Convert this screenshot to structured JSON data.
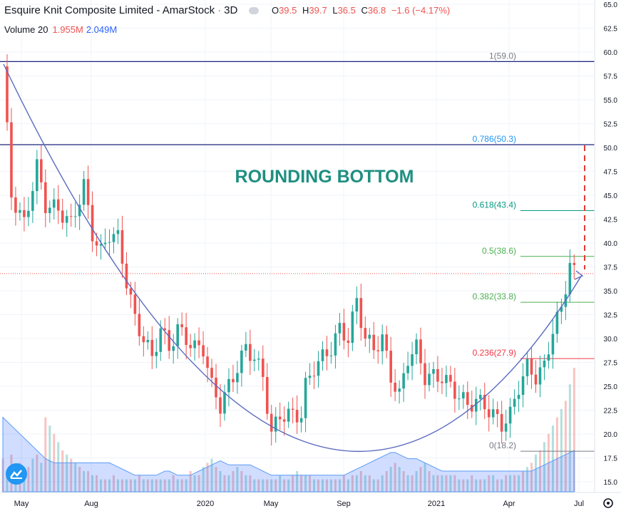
{
  "header": {
    "title": "Esquire Knit Composite Limited - AmarStock",
    "interval": "3D",
    "ohlc": [
      {
        "k": "O",
        "v": "39.5"
      },
      {
        "k": "H",
        "v": "39.7"
      },
      {
        "k": "L",
        "v": "36.5"
      },
      {
        "k": "C",
        "v": "36.8"
      }
    ],
    "change": "−1.6 (−4.17%)"
  },
  "volume_legend": {
    "label": "Volume 20",
    "v1": "1.955M",
    "v2": "2.049M"
  },
  "colors": {
    "up": "#26a69a",
    "down": "#ef5350",
    "accent": "#2962ff",
    "annotation": "#1e8f80",
    "fib0236": "#f23645",
    "fib0382": "#4caf50",
    "fib0618": "#089981",
    "fib0786": "#2196f3"
  },
  "chart_data": {
    "type": "candlestick",
    "title": "ROUNDING BOTTOM",
    "price_axis": {
      "ticks": [
        "65.0",
        "62.5",
        "60.0",
        "57.5",
        "55.0",
        "52.5",
        "50.0",
        "47.5",
        "45.0",
        "42.5",
        "40.0",
        "37.5",
        "35.0",
        "32.5",
        "30.0",
        "27.5",
        "25.0",
        "22.5",
        "20.0",
        "17.5",
        "15.0"
      ]
    },
    "time_axis": {
      "ticks": [
        "May",
        "Aug",
        "2020",
        "May",
        "Sep",
        "2021",
        "Apr",
        "Jul"
      ]
    },
    "last_price_label": "36.8",
    "fib_levels": [
      {
        "label": "1(59.0)",
        "price": 59.0
      },
      {
        "label": "0.786(50.3)",
        "price": 50.3
      },
      {
        "label": "0.618(43.4)",
        "price": 43.4
      },
      {
        "label": "0.5(38.6)",
        "price": 38.6
      },
      {
        "label": "0.382(33.8)",
        "price": 33.8
      },
      {
        "label": "0.236(27.9)",
        "price": 27.9
      },
      {
        "label": "0(18.2)",
        "price": 18.2
      }
    ],
    "horizontal_lines": [
      {
        "price_label": "59.0",
        "price": 59.0
      },
      {
        "price_label": "50.3",
        "price": 50.3
      }
    ],
    "price_path": [
      [
        0,
        58.5
      ],
      [
        2,
        45
      ],
      [
        5,
        42
      ],
      [
        8,
        48
      ],
      [
        10,
        44
      ],
      [
        13,
        43.5
      ],
      [
        16,
        42
      ],
      [
        19,
        46
      ],
      [
        21,
        41
      ],
      [
        23,
        39
      ],
      [
        25,
        41
      ],
      [
        27,
        40.5
      ],
      [
        29,
        36
      ],
      [
        31,
        32
      ],
      [
        33,
        30
      ],
      [
        35,
        28
      ],
      [
        37,
        31
      ],
      [
        39,
        29
      ],
      [
        41,
        31
      ],
      [
        43,
        30
      ],
      [
        45,
        29
      ],
      [
        47,
        29
      ],
      [
        49,
        25
      ],
      [
        51,
        23
      ],
      [
        53,
        25
      ],
      [
        55,
        27
      ],
      [
        57,
        29
      ],
      [
        59,
        28
      ],
      [
        61,
        26
      ],
      [
        63,
        20
      ],
      [
        65,
        22
      ],
      [
        68,
        22
      ],
      [
        70,
        22
      ],
      [
        71,
        25
      ],
      [
        73,
        27
      ],
      [
        75,
        28
      ],
      [
        77,
        29
      ],
      [
        79,
        31
      ],
      [
        81,
        30
      ],
      [
        83,
        34
      ],
      [
        85,
        30
      ],
      [
        87,
        29
      ],
      [
        89,
        30
      ],
      [
        91,
        26
      ],
      [
        93,
        24
      ],
      [
        95,
        28
      ],
      [
        97,
        29
      ],
      [
        99,
        26
      ],
      [
        101,
        26
      ],
      [
        103,
        26
      ],
      [
        105,
        25
      ],
      [
        107,
        24
      ],
      [
        109,
        23
      ],
      [
        111,
        23.5
      ],
      [
        113,
        23
      ],
      [
        115,
        22
      ],
      [
        117,
        21
      ],
      [
        119,
        22
      ],
      [
        121,
        25
      ],
      [
        123,
        27
      ],
      [
        125,
        26
      ],
      [
        127,
        27
      ],
      [
        129,
        31
      ],
      [
        131,
        33
      ],
      [
        133,
        38
      ],
      [
        134,
        36.8
      ]
    ],
    "volume": [
      8,
      5,
      9,
      6,
      7,
      5,
      6,
      8,
      9,
      7,
      18,
      16,
      14,
      12,
      10,
      9,
      8,
      7,
      6,
      5,
      5,
      4,
      4,
      3,
      3,
      3,
      4,
      3,
      3,
      3,
      3,
      3,
      4,
      3,
      3,
      3,
      3,
      3,
      3,
      3,
      4,
      3,
      3,
      3,
      5,
      4,
      4,
      6,
      7,
      8,
      6,
      5,
      4,
      4,
      5,
      6,
      5,
      4,
      4,
      3,
      3,
      3,
      3,
      3,
      3,
      4,
      3,
      3,
      4,
      5,
      4,
      4,
      4,
      3,
      3,
      3,
      3,
      3,
      3,
      3,
      4,
      3,
      4,
      4,
      5,
      4,
      4,
      3,
      3,
      4,
      5,
      6,
      7,
      6,
      5,
      4,
      4,
      5,
      6,
      7,
      5,
      4,
      4,
      4,
      4,
      4,
      4,
      3,
      3,
      3,
      4,
      3,
      3,
      3,
      4,
      4,
      3,
      3,
      4,
      4,
      4,
      4,
      5,
      6,
      7,
      9,
      10,
      12,
      14,
      16,
      18,
      20,
      22,
      26,
      30
    ],
    "volume_ma": [
      18,
      17,
      16,
      15,
      14,
      13,
      12,
      11,
      10,
      9,
      8,
      7.5,
      7,
      7,
      7,
      7,
      7,
      7,
      7,
      7,
      7,
      7,
      7,
      7,
      7,
      7,
      6.5,
      6,
      5.5,
      5,
      4.5,
      4,
      4,
      4,
      4,
      4,
      4,
      4.5,
      5,
      5,
      4.5,
      4,
      4,
      4,
      4,
      4.5,
      5,
      5.5,
      6,
      6.5,
      7,
      7.5,
      7,
      6.5,
      6.5,
      6.5,
      6.5,
      6.5,
      6.5,
      6,
      5.5,
      5,
      4.5,
      4,
      4,
      4,
      4,
      4,
      4,
      4,
      4,
      4,
      4,
      4,
      4,
      4,
      4,
      4,
      4,
      4,
      4,
      4.5,
      5,
      5.5,
      6,
      6.5,
      7,
      7.5,
      8,
      8.5,
      9,
      9.5,
      9.5,
      9,
      8.5,
      8,
      8,
      8,
      7.5,
      7,
      6.5,
      6,
      5.5,
      5,
      5,
      5,
      5,
      5,
      5,
      5,
      5,
      5,
      5,
      5,
      5,
      5,
      5,
      5,
      5,
      5,
      5,
      5,
      5,
      5,
      5,
      5.5,
      6,
      6.5,
      7,
      7.5,
      8,
      8.5,
      9,
      9.5,
      10
    ]
  }
}
